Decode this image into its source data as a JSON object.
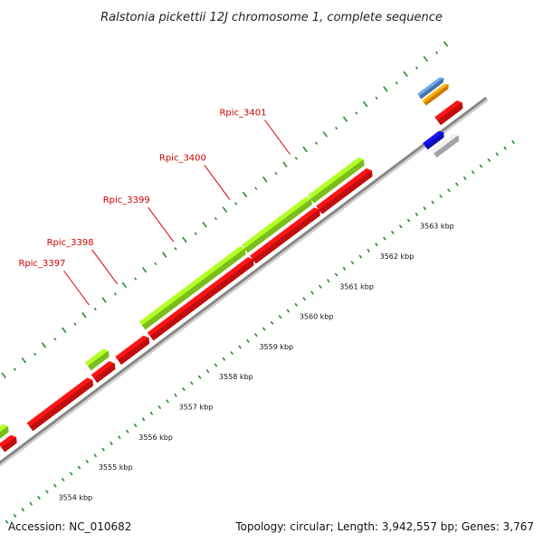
{
  "title": "Ralstonia pickettii 12J chromosome 1, complete sequence",
  "accession_text": "Accession: NC_010682",
  "summary_text": "Topology: circular; Length: 3,942,557 bp; Genes: 3,767",
  "colors": {
    "backbone": "#888888",
    "backbone_shadow": "#d0d0d0",
    "tick": "#2a8a2a",
    "label": "#cc0000",
    "leader": "#dd0000",
    "cds_red": "#ee1111",
    "gene_lightgreen": "#99ee22",
    "gene_darkgreen": "#338822",
    "blue": "#1111dd",
    "gray": "#cccccc",
    "orange": "#ff9900",
    "steelblue": "#5b8fc9"
  },
  "scale_labels": [
    {
      "label": "3554 kbp",
      "kb": 3554
    },
    {
      "label": "3555 kbp",
      "kb": 3555
    },
    {
      "label": "3556 kbp",
      "kb": 3556
    },
    {
      "label": "3557 kbp",
      "kb": 3557
    },
    {
      "label": "3558 kbp",
      "kb": 3558
    },
    {
      "label": "3559 kbp",
      "kb": 3559
    },
    {
      "label": "3560 kbp",
      "kb": 3560
    },
    {
      "label": "3561 kbp",
      "kb": 3561
    },
    {
      "label": "3562 kbp",
      "kb": 3562
    },
    {
      "label": "3563 kbp",
      "kb": 3563
    }
  ],
  "gene_labels": [
    {
      "name": "Rpic_3397",
      "kb": 3556.7
    },
    {
      "name": "Rpic_3398",
      "kb": 3557.4
    },
    {
      "name": "Rpic_3399",
      "kb": 3558.8
    },
    {
      "name": "Rpic_3400",
      "kb": 3560.2
    },
    {
      "name": "Rpic_3401",
      "kb": 3561.7
    }
  ],
  "features": [
    {
      "track": "cds",
      "start": 3553.6,
      "end": 3553.9,
      "color": "cds_red"
    },
    {
      "track": "cds",
      "start": 3554.3,
      "end": 3555.8,
      "color": "cds_red"
    },
    {
      "track": "cds",
      "start": 3555.9,
      "end": 3556.35,
      "color": "cds_red"
    },
    {
      "track": "cds",
      "start": 3556.5,
      "end": 3557.2,
      "color": "cds_red"
    },
    {
      "track": "cds",
      "start": 3557.3,
      "end": 3559.8,
      "color": "cds_red"
    },
    {
      "track": "cds",
      "start": 3559.85,
      "end": 3561.45,
      "color": "cds_red"
    },
    {
      "track": "cds",
      "start": 3561.5,
      "end": 3562.75,
      "color": "cds_red"
    },
    {
      "track": "cds",
      "start": 3564.45,
      "end": 3565.0,
      "color": "cds_red"
    },
    {
      "track": "gene",
      "start": 3553.45,
      "end": 3553.9,
      "color": "gene_lightgreen"
    },
    {
      "track": "gene",
      "start": 3555.95,
      "end": 3556.4,
      "color": "gene_lightgreen"
    },
    {
      "track": "gene",
      "start": 3557.3,
      "end": 3559.8,
      "color": "gene_lightgreen"
    },
    {
      "track": "gene",
      "start": 3559.85,
      "end": 3561.45,
      "color": "gene_lightgreen"
    },
    {
      "track": "gene",
      "start": 3561.5,
      "end": 3562.75,
      "color": "gene_lightgreen"
    },
    {
      "track": "inner1",
      "start": 3563.95,
      "end": 3564.35,
      "color": "blue"
    },
    {
      "track": "inner2",
      "start": 3564.0,
      "end": 3564.55,
      "color": "gray"
    },
    {
      "track": "outer2",
      "start": 3564.45,
      "end": 3565.0,
      "color": "orange"
    },
    {
      "track": "outer3",
      "start": 3564.45,
      "end": 3565.0,
      "color": "steelblue"
    }
  ]
}
